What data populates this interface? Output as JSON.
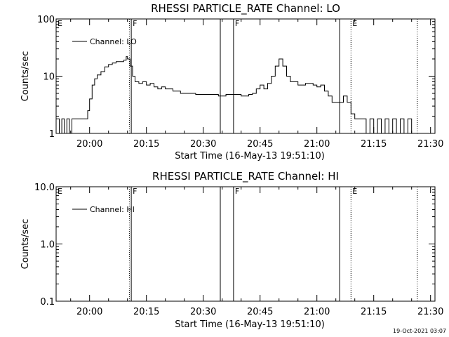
{
  "chart_data": [
    {
      "type": "line",
      "title": "RHESSI PARTICLE_RATE Channel: LO",
      "xlabel": "Start Time (16-May-13 19:51:10)",
      "ylabel": "Counts/sec",
      "y_scale": "log",
      "ylim": [
        1,
        100
      ],
      "xlim": [
        "19:51:10",
        "21:31:10"
      ],
      "x_tick_labels": [
        "20:00",
        "20:15",
        "20:30",
        "20:45",
        "21:00",
        "21:15",
        "21:30"
      ],
      "y_tick_labels": [
        "1",
        "10",
        "100"
      ],
      "legend": "top-left",
      "grid": false,
      "series": [
        {
          "name": "Channel: LO",
          "x": [
            "19:51:10",
            "19:52:00",
            "19:52:40",
            "19:53:20",
            "19:54:00",
            "19:54:40",
            "19:55:20",
            "19:56:00",
            "19:57:00",
            "19:58:00",
            "19:59:00",
            "19:59:30",
            "20:00:00",
            "20:00:40",
            "20:01:20",
            "20:02:00",
            "20:03:00",
            "20:04:00",
            "20:05:00",
            "20:06:00",
            "20:07:00",
            "20:08:00",
            "20:09:00",
            "20:09:40",
            "20:10:00",
            "20:10:40",
            "20:11:20",
            "20:12:00",
            "20:13:00",
            "20:14:00",
            "20:15:00",
            "20:16:00",
            "20:17:00",
            "20:18:00",
            "20:19:00",
            "20:20:00",
            "20:22:00",
            "20:24:00",
            "20:26:00",
            "20:28:00",
            "20:30:00",
            "20:32:00",
            "20:34:00",
            "20:36:00",
            "20:38:00",
            "20:40:00",
            "20:42:00",
            "20:43:00",
            "20:44:00",
            "20:45:00",
            "20:46:00",
            "20:47:00",
            "20:48:00",
            "20:49:00",
            "20:50:00",
            "20:51:00",
            "20:52:00",
            "20:53:00",
            "20:55:00",
            "20:57:00",
            "20:59:00",
            "21:00:00",
            "21:01:00",
            "21:02:00",
            "21:03:00",
            "21:04:00",
            "21:05:00",
            "21:06:00",
            "21:07:00",
            "21:08:00",
            "21:09:00",
            "21:10:00",
            "21:11:00",
            "21:12:00",
            "21:13:00",
            "21:14:00",
            "21:15:00",
            "21:16:00",
            "21:17:00",
            "21:18:00",
            "21:19:00",
            "21:20:00",
            "21:21:00",
            "21:22:00",
            "21:23:00",
            "21:24:00",
            "21:25:00",
            "21:26:00"
          ],
          "y": [
            1.8,
            1.0,
            1.8,
            1.0,
            1.8,
            1.0,
            1.8,
            1.8,
            1.8,
            1.8,
            1.8,
            2.5,
            4.0,
            7.0,
            9.0,
            10.5,
            12.0,
            14.5,
            16.0,
            17.0,
            18.0,
            18.0,
            19.0,
            22.0,
            20.0,
            15.0,
            10.0,
            8.0,
            7.5,
            8.0,
            7.0,
            7.5,
            6.5,
            6.0,
            6.5,
            6.0,
            5.5,
            5.0,
            5.0,
            4.8,
            4.8,
            4.8,
            4.5,
            4.8,
            4.8,
            4.5,
            4.8,
            5.0,
            6.0,
            7.0,
            6.0,
            7.5,
            10.0,
            15.0,
            20.0,
            15.0,
            10.0,
            8.0,
            7.0,
            7.5,
            7.0,
            6.5,
            7.0,
            5.5,
            4.5,
            3.5,
            3.5,
            3.5,
            4.5,
            3.5,
            2.2,
            1.8,
            1.8,
            1.8,
            1.0,
            1.8,
            1.0,
            1.8,
            1.0,
            1.8,
            1.0,
            1.8,
            1.0,
            1.8,
            1.0,
            1.8,
            1.0,
            1.0
          ]
        }
      ],
      "markers": [
        {
          "type": "line",
          "time": "20:11:00",
          "style": "solid",
          "label": "F"
        },
        {
          "type": "line",
          "time": "20:10:30",
          "style": "dotted",
          "label": ""
        },
        {
          "type": "line",
          "time": "20:34:30",
          "style": "solid",
          "label": ""
        },
        {
          "type": "line",
          "time": "20:38:00",
          "style": "solid",
          "label": "F"
        },
        {
          "type": "line",
          "time": "21:06:00",
          "style": "solid",
          "label": ""
        },
        {
          "type": "line",
          "time": "21:09:00",
          "style": "dotted",
          "label": "E"
        },
        {
          "type": "line",
          "time": "21:26:30",
          "style": "dotted",
          "label": ""
        },
        {
          "type": "label",
          "time": "19:51:10",
          "label": "E"
        }
      ]
    },
    {
      "type": "line",
      "title": "RHESSI PARTICLE_RATE Channel: HI",
      "xlabel": "Start Time (16-May-13 19:51:10)",
      "ylabel": "Counts/sec",
      "y_scale": "log",
      "ylim": [
        0.1,
        10
      ],
      "xlim": [
        "19:51:10",
        "21:31:10"
      ],
      "x_tick_labels": [
        "20:00",
        "20:15",
        "20:30",
        "20:45",
        "21:00",
        "21:15",
        "21:30"
      ],
      "y_tick_labels": [
        "0.1",
        "1.0",
        "10.0"
      ],
      "legend": "top-left",
      "grid": false,
      "series": [
        {
          "name": "Channel: HI",
          "x": [],
          "y": []
        }
      ],
      "markers": [
        {
          "type": "line",
          "time": "20:11:00",
          "style": "solid",
          "label": "F"
        },
        {
          "type": "line",
          "time": "20:10:30",
          "style": "dotted",
          "label": ""
        },
        {
          "type": "line",
          "time": "20:34:30",
          "style": "solid",
          "label": ""
        },
        {
          "type": "line",
          "time": "20:38:00",
          "style": "solid",
          "label": "F"
        },
        {
          "type": "line",
          "time": "21:06:00",
          "style": "solid",
          "label": ""
        },
        {
          "type": "line",
          "time": "21:09:00",
          "style": "dotted",
          "label": "E"
        },
        {
          "type": "line",
          "time": "21:26:30",
          "style": "dotted",
          "label": ""
        },
        {
          "type": "label",
          "time": "19:51:10",
          "label": "E"
        }
      ]
    }
  ],
  "footer": {
    "timestamp": "19-Oct-2021 03:07"
  }
}
